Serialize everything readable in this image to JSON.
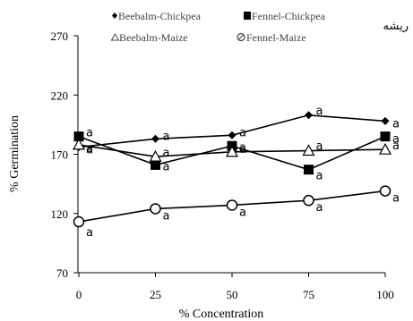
{
  "chart_data": {
    "type": "line",
    "title": "ریشه",
    "xlabel": "% Concentration",
    "ylabel": "% Germination",
    "x": [
      0,
      25,
      50,
      75,
      100
    ],
    "x_ticks": [
      "0",
      "25",
      "50",
      "75",
      "100"
    ],
    "y_ticks": [
      "70",
      "120",
      "170",
      "220",
      "270"
    ],
    "ylim": [
      70,
      270
    ],
    "xlim": [
      0,
      100
    ],
    "grid": false,
    "legend_placement": "top",
    "series": [
      {
        "name": "Beebalm-Chickpea",
        "marker": "diamond",
        "values": [
          176,
          183,
          186,
          203,
          198
        ],
        "labels": [
          "a",
          "a",
          "a",
          "a",
          "a"
        ]
      },
      {
        "name": "Fennel-Chickpea",
        "marker": "square",
        "values": [
          185,
          161,
          177,
          157,
          185
        ],
        "labels": [
          "a",
          "a",
          "a",
          "a",
          "a"
        ]
      },
      {
        "name": "Beebalm-Maize",
        "marker": "triangle",
        "values": [
          178,
          168,
          172,
          173,
          174
        ],
        "labels": [
          "a",
          "a",
          "a",
          "a",
          "a"
        ]
      },
      {
        "name": "Fennel-Maize",
        "marker": "circle",
        "values": [
          113,
          124,
          127,
          131,
          139
        ],
        "labels": [
          "a",
          "a",
          "a",
          "a",
          "a"
        ]
      }
    ],
    "colors": {
      "line": "#000000",
      "axis": "#000000",
      "background": "#ffffff"
    }
  }
}
